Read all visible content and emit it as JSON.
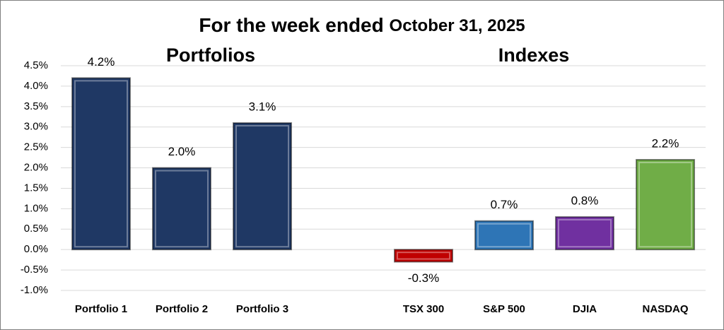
{
  "chart_data": {
    "type": "bar",
    "title": "For the week ended",
    "title_date": "October 31, 2025",
    "annotations": [
      "Portfolios",
      "Indexes"
    ],
    "categories": [
      "Portfolio 1",
      "Portfolio 2",
      "Portfolio 3",
      null,
      "TSX 300",
      "S&P 500",
      "DJIA",
      "NASDAQ"
    ],
    "values": [
      4.2,
      2.0,
      3.1,
      null,
      -0.3,
      0.7,
      0.8,
      2.2
    ],
    "value_labels": [
      "4.2%",
      "2.0%",
      "3.1%",
      null,
      "-0.3%",
      "0.7%",
      "0.8%",
      "2.2%"
    ],
    "colors": [
      "#1f3864",
      "#1f3864",
      "#1f3864",
      null,
      "#c00000",
      "#2e75b6",
      "#7030a0",
      "#70ad47"
    ],
    "ylim": [
      -1.0,
      4.5
    ],
    "yticks": [
      {
        "value": -1.0,
        "label": "-1.0%"
      },
      {
        "value": -0.5,
        "label": "-0.5%"
      },
      {
        "value": 0.0,
        "label": "0.0%"
      },
      {
        "value": 0.5,
        "label": "0.5%"
      },
      {
        "value": 1.0,
        "label": "1.0%"
      },
      {
        "value": 1.5,
        "label": "1.5%"
      },
      {
        "value": 2.0,
        "label": "2.0%"
      },
      {
        "value": 2.5,
        "label": "2.5%"
      },
      {
        "value": 3.0,
        "label": "3.0%"
      },
      {
        "value": 3.5,
        "label": "3.5%"
      },
      {
        "value": 4.0,
        "label": "4.0%"
      },
      {
        "value": 4.5,
        "label": "4.5%"
      }
    ],
    "grid": true
  }
}
